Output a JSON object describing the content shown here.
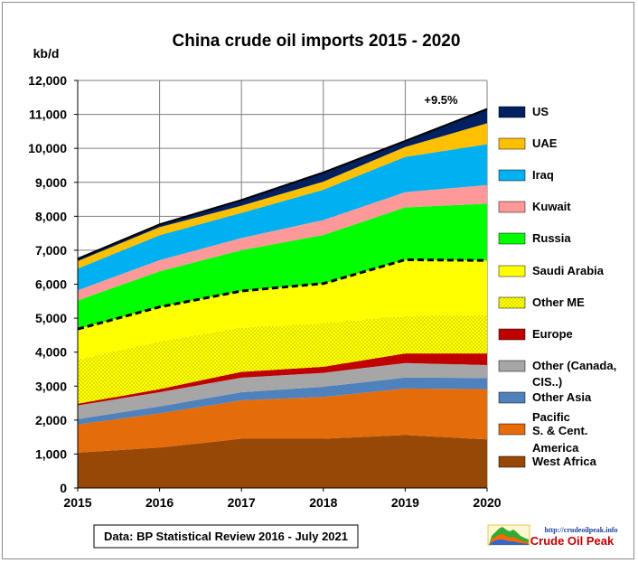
{
  "chart_data": {
    "type": "area",
    "stacked": true,
    "title": "China crude oil imports 2015 - 2020",
    "ylabel": "kb/d",
    "xlabel": "",
    "x": [
      2015,
      2016,
      2017,
      2018,
      2019,
      2020
    ],
    "ylim": [
      0,
      12000
    ],
    "yticks": [
      "0",
      "1,000",
      "2,000",
      "3,000",
      "4,000",
      "5,000",
      "6,000",
      "7,000",
      "8,000",
      "9,000",
      "10,000",
      "11,000",
      "12,000"
    ],
    "grid": true,
    "legend_position": "right",
    "series": [
      {
        "name": "West Africa",
        "color": "#974706",
        "values": [
          1040,
          1190,
          1450,
          1450,
          1560,
          1430
        ]
      },
      {
        "name": "S. & Cent. America",
        "color": "#e46c0a",
        "values": [
          830,
          1010,
          1130,
          1230,
          1370,
          1480
        ]
      },
      {
        "name": "Other Asia",
        "color": "#4f81bd",
        "values": [
          160,
          200,
          240,
          300,
          320,
          330
        ]
      },
      {
        "name": "Other (Canada, CIS..)",
        "color": "#a6a6a6",
        "values": [
          400,
          420,
          430,
          410,
          430,
          380
        ]
      },
      {
        "name": "Europe",
        "color": "#c00000",
        "values": [
          50,
          90,
          170,
          180,
          280,
          340
        ]
      },
      {
        "name": "Other ME",
        "color": "#ffff00",
        "pattern": "dotted",
        "values": [
          1300,
          1400,
          1300,
          1280,
          1100,
          1140
        ]
      },
      {
        "name": "Saudi Arabia",
        "color": "#ffff00",
        "values": [
          900,
          1020,
          1080,
          1170,
          1660,
          1600
        ]
      },
      {
        "name": "Russia",
        "color": "#00ff00",
        "values": [
          840,
          1050,
          1200,
          1430,
          1540,
          1670
        ]
      },
      {
        "name": "Kuwait",
        "color": "#ff9999",
        "values": [
          300,
          330,
          360,
          440,
          450,
          550
        ]
      },
      {
        "name": "Iraq",
        "color": "#00b0f0",
        "values": [
          640,
          730,
          740,
          890,
          1040,
          1200
        ]
      },
      {
        "name": "UAE",
        "color": "#ffc000",
        "values": [
          220,
          240,
          210,
          240,
          290,
          620
        ]
      },
      {
        "name": "US",
        "color": "#002060",
        "values": [
          70,
          80,
          170,
          270,
          180,
          420
        ]
      }
    ],
    "middle_east_total_line": {
      "style": "dashed",
      "color": "#000000",
      "after_series": "Saudi Arabia"
    },
    "total_line": {
      "color": "#000000"
    },
    "annotations": [
      "+9.5%"
    ],
    "legend_labels": [
      "US",
      "UAE",
      "Iraq",
      "Kuwait",
      "Russia",
      "Saudi Arabia",
      "Other ME",
      "Europe",
      "Other (Canada,",
      "CIS..)",
      "Other Asia",
      "Pacific",
      "S. & Cent.",
      "America",
      "West Africa"
    ]
  },
  "source_text": "Data: BP Statistical Review 2016 - July 2021",
  "logo": {
    "url": "http://crudeoilpeak.info",
    "name": "Crude Oil Peak"
  }
}
